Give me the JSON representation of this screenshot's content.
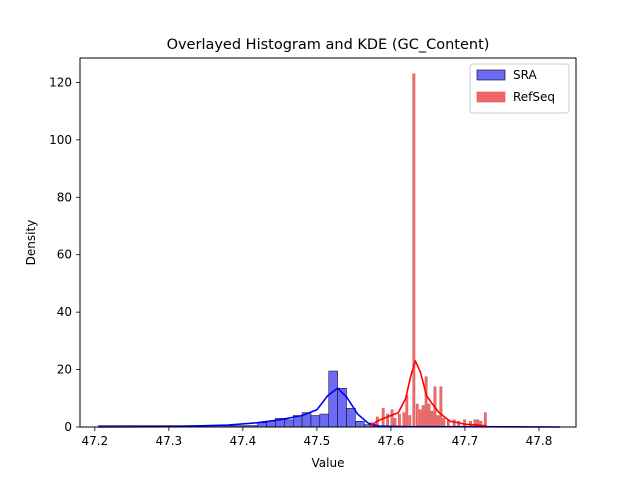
{
  "chart_data": {
    "type": "histogram",
    "title": "Overlayed Histogram and KDE (GC_Content)",
    "xlabel": "Value",
    "ylabel": "Density",
    "xlim": [
      47.18,
      47.85
    ],
    "ylim": [
      0,
      128.5
    ],
    "x_ticks": [
      "47.2",
      "47.3",
      "47.4",
      "47.5",
      "47.6",
      "47.7",
      "47.8"
    ],
    "x_tick_values": [
      47.2,
      47.3,
      47.4,
      47.5,
      47.6,
      47.7,
      47.8
    ],
    "y_ticks": [
      "0",
      "20",
      "40",
      "60",
      "80",
      "100",
      "120"
    ],
    "y_tick_values": [
      0,
      20,
      40,
      60,
      80,
      100,
      120
    ],
    "legend_position": "top-right",
    "grid": false,
    "series": [
      {
        "name": "SRA",
        "color": "#0000ff",
        "fill": "#6b6bf5",
        "bins": [
          {
            "x0": 47.205,
            "x1": 47.42,
            "y": 0.5
          },
          {
            "x0": 47.42,
            "x1": 47.432,
            "y": 1.5
          },
          {
            "x0": 47.432,
            "x1": 47.444,
            "y": 2.0
          },
          {
            "x0": 47.444,
            "x1": 47.456,
            "y": 3.0
          },
          {
            "x0": 47.456,
            "x1": 47.468,
            "y": 2.5
          },
          {
            "x0": 47.468,
            "x1": 47.48,
            "y": 4.0
          },
          {
            "x0": 47.48,
            "x1": 47.492,
            "y": 5.0
          },
          {
            "x0": 47.492,
            "x1": 47.504,
            "y": 4.0
          },
          {
            "x0": 47.504,
            "x1": 47.516,
            "y": 4.5
          },
          {
            "x0": 47.516,
            "x1": 47.528,
            "y": 19.5
          },
          {
            "x0": 47.528,
            "x1": 47.54,
            "y": 13.5
          },
          {
            "x0": 47.54,
            "x1": 47.552,
            "y": 6.5
          },
          {
            "x0": 47.552,
            "x1": 47.564,
            "y": 2.0
          },
          {
            "x0": 47.564,
            "x1": 47.576,
            "y": 0.8
          },
          {
            "x0": 47.576,
            "x1": 47.588,
            "y": 0.4
          },
          {
            "x0": 47.588,
            "x1": 47.828,
            "y": 0.1
          }
        ],
        "kde": [
          {
            "x": 47.205,
            "y": 0.0
          },
          {
            "x": 47.3,
            "y": 0.1
          },
          {
            "x": 47.38,
            "y": 0.7
          },
          {
            "x": 47.42,
            "y": 1.5
          },
          {
            "x": 47.45,
            "y": 2.5
          },
          {
            "x": 47.48,
            "y": 4.0
          },
          {
            "x": 47.5,
            "y": 6.0
          },
          {
            "x": 47.515,
            "y": 11.0
          },
          {
            "x": 47.528,
            "y": 13.5
          },
          {
            "x": 47.54,
            "y": 10.5
          },
          {
            "x": 47.555,
            "y": 4.5
          },
          {
            "x": 47.57,
            "y": 1.2
          },
          {
            "x": 47.585,
            "y": 0.3
          },
          {
            "x": 47.62,
            "y": 0.1
          },
          {
            "x": 47.7,
            "y": 0.1
          },
          {
            "x": 47.828,
            "y": 0.0
          }
        ]
      },
      {
        "name": "RefSeq",
        "color": "#ff0000",
        "fill": "#f06666",
        "bins": [
          {
            "x0": 47.572,
            "x1": 47.575,
            "y": 1.5
          },
          {
            "x0": 47.58,
            "x1": 47.583,
            "y": 3.5
          },
          {
            "x0": 47.588,
            "x1": 47.591,
            "y": 6.5
          },
          {
            "x0": 47.594,
            "x1": 47.597,
            "y": 4.5
          },
          {
            "x0": 47.6,
            "x1": 47.603,
            "y": 6.0
          },
          {
            "x0": 47.604,
            "x1": 47.607,
            "y": 3.0
          },
          {
            "x0": 47.61,
            "x1": 47.613,
            "y": 4.5
          },
          {
            "x0": 47.616,
            "x1": 47.619,
            "y": 5.0
          },
          {
            "x0": 47.62,
            "x1": 47.623,
            "y": 11.0
          },
          {
            "x0": 47.624,
            "x1": 47.627,
            "y": 4.0
          },
          {
            "x0": 47.6295,
            "x1": 47.6325,
            "y": 123.0
          },
          {
            "x0": 47.634,
            "x1": 47.637,
            "y": 8.0
          },
          {
            "x0": 47.638,
            "x1": 47.641,
            "y": 6.0
          },
          {
            "x0": 47.642,
            "x1": 47.645,
            "y": 7.5
          },
          {
            "x0": 47.646,
            "x1": 47.649,
            "y": 17.5
          },
          {
            "x0": 47.65,
            "x1": 47.653,
            "y": 8.0
          },
          {
            "x0": 47.654,
            "x1": 47.657,
            "y": 5.5
          },
          {
            "x0": 47.658,
            "x1": 47.661,
            "y": 14.0
          },
          {
            "x0": 47.662,
            "x1": 47.665,
            "y": 4.0
          },
          {
            "x0": 47.666,
            "x1": 47.669,
            "y": 14.0
          },
          {
            "x0": 47.67,
            "x1": 47.673,
            "y": 3.0
          },
          {
            "x0": 47.676,
            "x1": 47.679,
            "y": 2.5
          },
          {
            "x0": 47.684,
            "x1": 47.687,
            "y": 2.5
          },
          {
            "x0": 47.69,
            "x1": 47.693,
            "y": 2.0
          },
          {
            "x0": 47.698,
            "x1": 47.701,
            "y": 2.5
          },
          {
            "x0": 47.706,
            "x1": 47.709,
            "y": 2.0
          },
          {
            "x0": 47.712,
            "x1": 47.715,
            "y": 2.5
          },
          {
            "x0": 47.716,
            "x1": 47.719,
            "y": 2.5
          },
          {
            "x0": 47.72,
            "x1": 47.723,
            "y": 2.0
          },
          {
            "x0": 47.726,
            "x1": 47.729,
            "y": 5.0
          }
        ],
        "kde": [
          {
            "x": 47.572,
            "y": 0.5
          },
          {
            "x": 47.585,
            "y": 2.5
          },
          {
            "x": 47.6,
            "y": 4.0
          },
          {
            "x": 47.61,
            "y": 5.0
          },
          {
            "x": 47.62,
            "y": 10.0
          },
          {
            "x": 47.627,
            "y": 18.0
          },
          {
            "x": 47.633,
            "y": 23.0
          },
          {
            "x": 47.64,
            "y": 19.0
          },
          {
            "x": 47.648,
            "y": 11.0
          },
          {
            "x": 47.656,
            "y": 8.0
          },
          {
            "x": 47.665,
            "y": 5.0
          },
          {
            "x": 47.68,
            "y": 2.0
          },
          {
            "x": 47.7,
            "y": 1.0
          },
          {
            "x": 47.729,
            "y": 0.4
          }
        ]
      }
    ]
  }
}
